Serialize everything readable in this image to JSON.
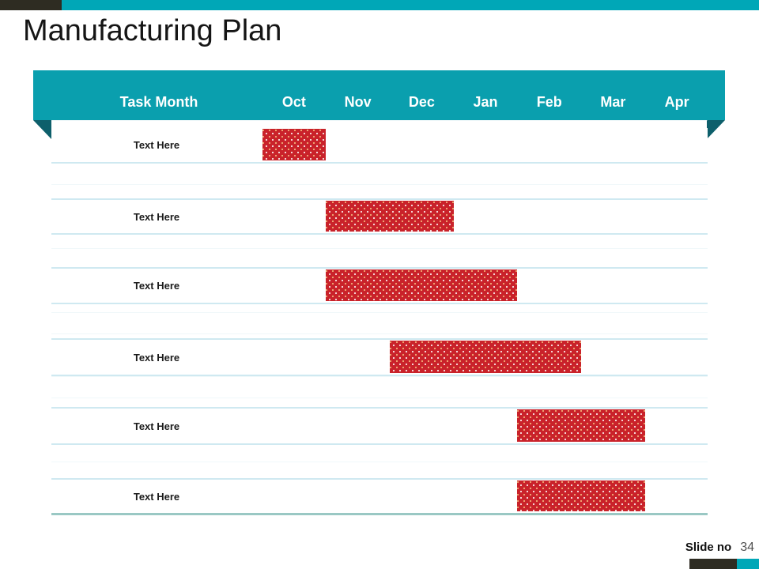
{
  "slide": {
    "title": "Manufacturing Plan",
    "footer": {
      "label": "Slide no",
      "number": "34"
    }
  },
  "table_header": {
    "task_column": "Task Month",
    "months": [
      "Oct",
      "Nov",
      "Dec",
      "Jan",
      "Feb",
      "Mar",
      "Apr"
    ]
  },
  "chart_data": {
    "type": "bar",
    "subtype": "gantt",
    "title": "Manufacturing Plan",
    "x_axis": {
      "label": "Task Month",
      "categories": [
        "Oct",
        "Nov",
        "Dec",
        "Jan",
        "Feb",
        "Mar",
        "Apr"
      ]
    },
    "legend": "none",
    "grid": "horizontal row separator lines only",
    "bar_fill": "red with light polka-dot pattern",
    "tasks": [
      {
        "label": "Text Here",
        "start_month": "Oct",
        "end_month": "Oct",
        "start_index": 0,
        "span_months": 1
      },
      {
        "label": "Text Here",
        "start_month": "Nov",
        "end_month": "Dec",
        "start_index": 1,
        "span_months": 2
      },
      {
        "label": "Text Here",
        "start_month": "Nov",
        "end_month": "Jan",
        "start_index": 1,
        "span_months": 3
      },
      {
        "label": "Text Here",
        "start_month": "Dec",
        "end_month": "Feb",
        "start_index": 2,
        "span_months": 3
      },
      {
        "label": "Text Here",
        "start_month": "Feb",
        "end_month": "Mar",
        "start_index": 4,
        "span_months": 2
      },
      {
        "label": "Text Here",
        "start_month": "Feb",
        "end_month": "Mar",
        "start_index": 4,
        "span_months": 2
      }
    ]
  },
  "colors": {
    "accent_teal": "#00a7b7",
    "banner_teal": "#0a9fae",
    "fold_dark_teal": "#0d5f6b",
    "bar_red": "#c9222a",
    "row_line": "#cfe9f1",
    "table_bottom_line": "#9ac8c4",
    "dark_accent": "#2e2c22",
    "slide_number_gray": "#4f4f4f"
  }
}
